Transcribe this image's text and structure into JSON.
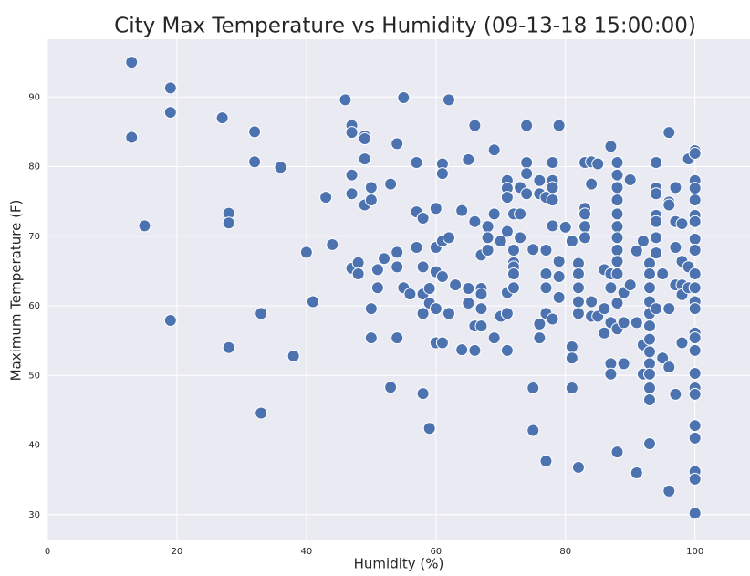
{
  "chart_data": {
    "type": "scatter",
    "title": "City Max Temperature vs Humidity (09-13-18 15:00:00)",
    "x_label": "Humidity (%)",
    "y_label": "Maximum Temperature (F)",
    "color": "#4c72b0",
    "grid": true,
    "xlim": [
      0,
      108.5
    ],
    "ylim": [
      26.3,
      98.3
    ],
    "xticks": [
      0,
      20,
      40,
      60,
      80,
      100
    ],
    "yticks": [
      30,
      40,
      50,
      60,
      70,
      80,
      90
    ],
    "x": [
      13,
      13,
      19,
      19,
      15,
      19,
      27,
      32,
      32,
      36,
      28,
      28,
      28,
      33,
      33,
      38,
      40,
      41,
      43,
      44,
      46,
      47,
      47,
      47,
      47,
      47,
      48,
      48,
      49,
      49,
      49,
      49,
      50,
      50,
      50,
      50,
      51,
      51,
      52,
      53,
      53,
      54,
      54,
      54,
      54,
      55,
      55,
      56,
      57,
      57,
      57,
      58,
      58,
      58,
      58,
      58,
      59,
      59,
      59,
      60,
      60,
      60,
      60,
      60,
      61,
      61,
      61,
      61,
      61,
      62,
      62,
      62,
      63,
      64,
      64,
      65,
      65,
      65,
      66,
      66,
      66,
      66,
      67,
      67,
      67,
      67,
      67,
      68,
      68,
      68,
      69,
      69,
      69,
      70,
      70,
      71,
      71,
      71,
      71,
      71,
      71,
      71,
      72,
      72,
      72,
      72,
      72,
      72,
      73,
      73,
      73,
      74,
      74,
      74,
      74,
      75,
      75,
      75,
      76,
      76,
      76,
      76,
      77,
      77,
      77,
      77,
      77,
      77,
      78,
      78,
      78,
      78,
      78,
      78,
      79,
      79,
      79,
      79,
      80,
      81,
      81,
      81,
      81,
      82,
      82,
      82,
      82,
      82,
      82,
      83,
      83,
      83,
      83,
      83,
      84,
      84,
      84,
      84,
      85,
      85,
      86,
      86,
      86,
      87,
      87,
      87,
      87,
      87,
      87,
      88,
      88,
      88,
      88,
      88,
      88,
      88,
      88,
      88,
      88,
      88,
      88,
      88,
      89,
      89,
      89,
      90,
      90,
      91,
      91,
      91,
      92,
      92,
      92,
      93,
      93,
      93,
      93,
      93,
      93,
      93,
      93,
      93,
      93,
      93,
      93,
      93,
      94,
      94,
      94,
      94,
      94,
      94,
      94,
      94,
      95,
      95,
      96,
      96,
      96,
      96,
      96,
      96,
      97,
      97,
      97,
      97,
      97,
      98,
      98,
      98,
      98,
      98,
      99,
      99,
      99,
      100,
      100,
      100,
      100,
      100,
      100,
      100,
      100,
      100,
      100,
      100,
      100,
      100,
      100,
      100,
      100,
      100,
      100,
      100,
      100,
      100,
      100,
      100,
      100
    ],
    "values": [
      95,
      84.2,
      91.3,
      87.8,
      71.5,
      57.9,
      87,
      85,
      80.7,
      79.9,
      73.3,
      71.9,
      54,
      58.9,
      44.6,
      52.8,
      67.7,
      60.6,
      75.6,
      68.8,
      89.6,
      85.9,
      84.9,
      78.8,
      76.1,
      65.4,
      66.2,
      64.6,
      84.4,
      84,
      81.1,
      74.5,
      77,
      75.2,
      59.6,
      55.4,
      65.2,
      62.6,
      66.8,
      77.5,
      48.3,
      83.3,
      67.7,
      65.6,
      55.4,
      89.9,
      62.6,
      61.7,
      80.6,
      73.5,
      68.4,
      72.6,
      65.6,
      61.7,
      58.9,
      47.4,
      62.5,
      60.4,
      42.4,
      74,
      68.4,
      64.9,
      59.6,
      54.7,
      80.4,
      79,
      69.3,
      64.2,
      54.7,
      89.6,
      69.8,
      58.9,
      63,
      73.7,
      53.7,
      81,
      62.5,
      60.4,
      85.9,
      72.1,
      57.1,
      53.6,
      67.3,
      62.5,
      61.7,
      59.6,
      57.1,
      71.4,
      69.8,
      68,
      82.4,
      73.2,
      55.4,
      69.3,
      58.5,
      78,
      76.9,
      75.6,
      70.7,
      61.9,
      58.9,
      53.6,
      73.2,
      68,
      66.2,
      65.6,
      64.6,
      62.6,
      77,
      73.2,
      69.8,
      85.9,
      80.6,
      79,
      76.1,
      68.1,
      48.2,
      42.1,
      78,
      76.1,
      57.4,
      55.4,
      75.6,
      68,
      64.6,
      62.6,
      58.9,
      37.7,
      80.6,
      78,
      77,
      75.2,
      71.5,
      58.1,
      85.9,
      66.4,
      64.2,
      61.2,
      71.3,
      69.3,
      54.1,
      52.5,
      48.2,
      66.1,
      64.6,
      62.6,
      60.6,
      58.9,
      36.8,
      80.6,
      74,
      73.2,
      71.4,
      69.8,
      77.5,
      60.6,
      58.5,
      80.7,
      80.4,
      58.5,
      65.2,
      59.6,
      56.1,
      82.9,
      64.6,
      62.6,
      57.6,
      51.7,
      50.2,
      80.6,
      78.8,
      77,
      75.2,
      73.2,
      71.4,
      69.8,
      68,
      66.4,
      64.6,
      60.4,
      56.7,
      39,
      61.9,
      51.7,
      57.6,
      78.1,
      63,
      67.9,
      57.6,
      36,
      69.3,
      54.4,
      50.2,
      66.1,
      64.6,
      62.6,
      60.6,
      58.9,
      57.1,
      55.2,
      53.4,
      51.7,
      50.2,
      48.2,
      46.5,
      40.2,
      80.6,
      76.9,
      76.1,
      73,
      72.1,
      69.8,
      67.6,
      59.6,
      64.6,
      52.5,
      84.9,
      74.9,
      74.5,
      59.6,
      51.2,
      33.4,
      77,
      72.1,
      68.4,
      63,
      47.3,
      71.8,
      66.4,
      63,
      61.6,
      54.7,
      81.1,
      65.6,
      62.6,
      82.3,
      81.9,
      78,
      76.9,
      75.2,
      73,
      72.1,
      69.6,
      68,
      64.6,
      62.6,
      60.6,
      59.6,
      56.1,
      55.4,
      53.6,
      50.3,
      48.2,
      47.3,
      42.8,
      41,
      36.2,
      35.1,
      30.2
    ]
  }
}
